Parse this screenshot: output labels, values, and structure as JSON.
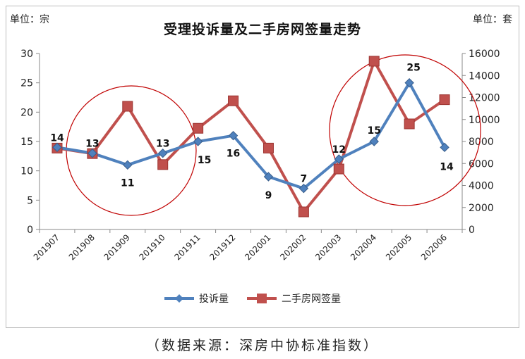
{
  "header": {
    "unit_left": "单位：宗",
    "unit_right": "单位：套",
    "title": "受理投诉量及二手房网签量走势"
  },
  "footer": {
    "source": "（数据来源：深房中协标准指数）"
  },
  "colors": {
    "complaints": "#4f81bd",
    "sales": "#c0504d",
    "circle": "#c00000",
    "grid": "#bfbfbf"
  },
  "chart_data": {
    "type": "line",
    "categories": [
      "201907",
      "201908",
      "201909",
      "201910",
      "201911",
      "201912",
      "202001",
      "202002",
      "202003",
      "202004",
      "202005",
      "202006"
    ],
    "series": [
      {
        "name": "投诉量",
        "axis": "left",
        "marker": "diamond",
        "values": [
          14,
          13,
          11,
          13,
          15,
          16,
          9,
          7,
          12,
          15,
          25,
          14
        ],
        "data_labels": [
          "14",
          "13",
          "11",
          "13",
          "15",
          "16",
          "9",
          "7",
          "12",
          "15",
          "25",
          "14"
        ]
      },
      {
        "name": "二手房网签量",
        "axis": "right",
        "marker": "square",
        "values": [
          7400,
          6900,
          11200,
          5900,
          9200,
          11700,
          7400,
          1600,
          5500,
          15300,
          9600,
          11800
        ]
      }
    ],
    "y_left": {
      "min": 0,
      "max": 30,
      "ticks": [
        "0",
        "5",
        "10",
        "15",
        "20",
        "25",
        "30"
      ]
    },
    "y_right": {
      "min": 0,
      "max": 16000,
      "ticks": [
        "0",
        "2000",
        "4000",
        "6000",
        "8000",
        "10000",
        "12000",
        "14000",
        "16000"
      ]
    },
    "grid": false,
    "legend_position": "bottom",
    "annotations": [
      {
        "shape": "circle",
        "around_categories": [
          "201908",
          "201910"
        ]
      },
      {
        "shape": "circle",
        "around_categories": [
          "202003",
          "202006"
        ]
      }
    ]
  }
}
